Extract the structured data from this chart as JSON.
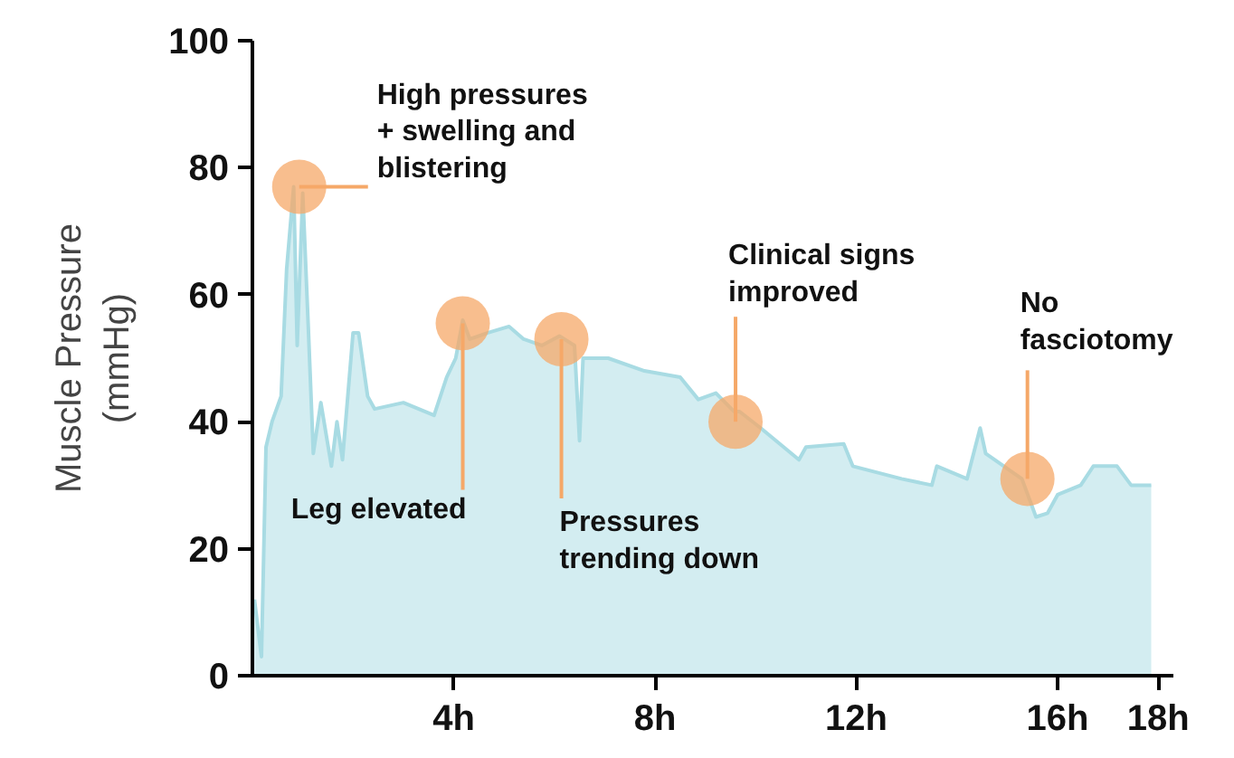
{
  "chart_data": {
    "type": "area",
    "ylabel": "Muscle Pressure (mmHg)",
    "xlim": [
      0,
      18.3
    ],
    "ylim": [
      0,
      100
    ],
    "xticks": [
      {
        "value": 4,
        "label": "4h"
      },
      {
        "value": 8,
        "label": "8h"
      },
      {
        "value": 12,
        "label": "12h"
      },
      {
        "value": 16,
        "label": "16h"
      },
      {
        "value": 18,
        "label": "18h"
      }
    ],
    "yticks": [
      0,
      20,
      40,
      60,
      80,
      100
    ],
    "grid": false,
    "series": [
      {
        "color": "#a8dbe3",
        "x": [
          0.04,
          0.18,
          0.27,
          0.39,
          0.57,
          0.68,
          0.82,
          0.89,
          1.0,
          1.11,
          1.21,
          1.36,
          1.57,
          1.68,
          1.79,
          2.0,
          2.11,
          2.29,
          2.43,
          3.0,
          3.61,
          3.86,
          4.04,
          4.18,
          4.32,
          4.68,
          5.1,
          5.39,
          5.75,
          6.1,
          6.4,
          6.5,
          6.57,
          7.07,
          7.79,
          8.5,
          8.86,
          9.21,
          9.57,
          9.68,
          10.1,
          10.86,
          11.0,
          11.75,
          11.93,
          12.9,
          13.5,
          13.6,
          14.2,
          14.46,
          14.57,
          14.93,
          15.29,
          15.57,
          15.8,
          16.0,
          16.46,
          16.71,
          17.18,
          17.46,
          17.86
        ],
        "values": [
          12,
          3,
          36,
          40,
          44,
          64,
          77,
          52,
          76,
          55,
          35,
          43,
          33,
          40,
          34,
          54,
          54,
          44,
          42,
          43,
          41,
          47,
          50,
          56,
          53,
          54,
          55,
          53,
          52,
          53.5,
          52,
          37,
          50,
          50,
          48,
          47,
          43.5,
          44.5,
          41.6,
          41.6,
          39,
          34,
          36,
          36.5,
          33,
          31,
          30,
          33,
          31,
          39,
          35,
          33,
          31,
          25,
          25.6,
          28.5,
          30,
          33,
          33,
          30,
          30
        ]
      }
    ],
    "annotations": [
      {
        "text": "High pressures + swelling and blistering",
        "x": 0.93,
        "y": 77
      },
      {
        "text": "Leg elevated",
        "x": 4.18,
        "y": 55.5
      },
      {
        "text": "Pressures trending down",
        "x": 6.14,
        "y": 53
      },
      {
        "text": "Clinical signs improved",
        "x": 9.6,
        "y": 40
      },
      {
        "text": "No fasciotomy",
        "x": 15.4,
        "y": 31
      }
    ]
  }
}
